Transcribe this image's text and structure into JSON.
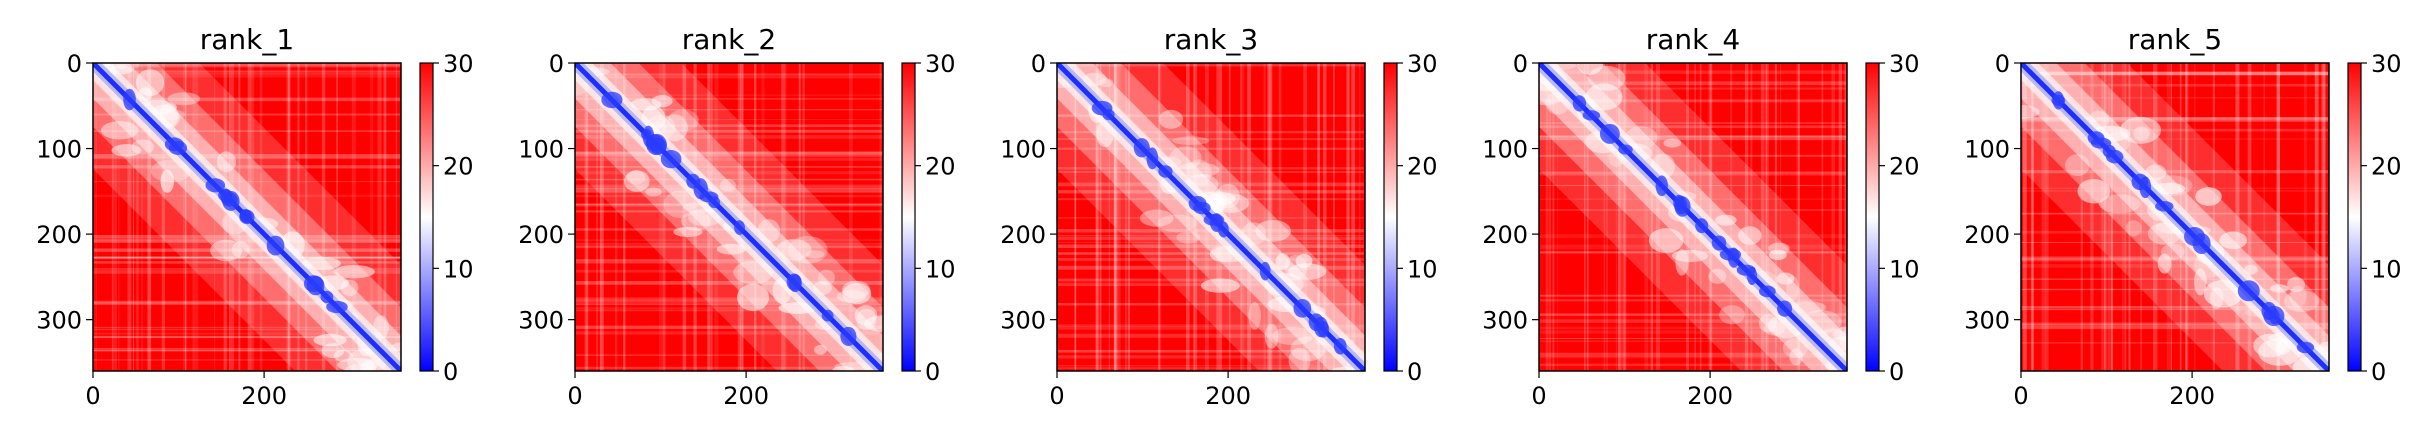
{
  "chart_data": [
    {
      "type": "heatmap",
      "title": "rank_1",
      "diag_variant": 1,
      "xlim": [
        0,
        360
      ],
      "ylim": [
        360,
        0
      ],
      "xticks": [
        0,
        200
      ],
      "yticks": [
        0,
        100,
        200,
        300
      ],
      "colorbar": {
        "min": 0,
        "max": 30,
        "ticks": [
          0,
          10,
          20,
          30
        ],
        "colormap": [
          "#0000ff",
          "#ffffff",
          "#ff0000"
        ]
      }
    },
    {
      "type": "heatmap",
      "title": "rank_2",
      "diag_variant": 2,
      "xlim": [
        0,
        360
      ],
      "ylim": [
        360,
        0
      ],
      "xticks": [
        0,
        200
      ],
      "yticks": [
        0,
        100,
        200,
        300
      ],
      "colorbar": {
        "min": 0,
        "max": 30,
        "ticks": [
          0,
          10,
          20,
          30
        ],
        "colormap": [
          "#0000ff",
          "#ffffff",
          "#ff0000"
        ]
      }
    },
    {
      "type": "heatmap",
      "title": "rank_3",
      "diag_variant": 3,
      "xlim": [
        0,
        360
      ],
      "ylim": [
        360,
        0
      ],
      "xticks": [
        0,
        200
      ],
      "yticks": [
        0,
        100,
        200,
        300
      ],
      "colorbar": {
        "min": 0,
        "max": 30,
        "ticks": [
          0,
          10,
          20,
          30
        ],
        "colormap": [
          "#0000ff",
          "#ffffff",
          "#ff0000"
        ]
      }
    },
    {
      "type": "heatmap",
      "title": "rank_4",
      "diag_variant": 4,
      "xlim": [
        0,
        360
      ],
      "ylim": [
        360,
        0
      ],
      "xticks": [
        0,
        200
      ],
      "yticks": [
        0,
        100,
        200,
        300
      ],
      "colorbar": {
        "min": 0,
        "max": 30,
        "ticks": [
          0,
          10,
          20,
          30
        ],
        "colormap": [
          "#0000ff",
          "#ffffff",
          "#ff0000"
        ]
      }
    },
    {
      "type": "heatmap",
      "title": "rank_5",
      "diag_variant": 5,
      "xlim": [
        0,
        360
      ],
      "ylim": [
        360,
        0
      ],
      "xticks": [
        0,
        200
      ],
      "yticks": [
        0,
        100,
        200,
        300
      ],
      "colorbar": {
        "min": 0,
        "max": 30,
        "ticks": [
          0,
          10,
          20,
          30
        ],
        "colormap": [
          "#0000ff",
          "#ffffff",
          "#ff0000"
        ]
      }
    }
  ]
}
